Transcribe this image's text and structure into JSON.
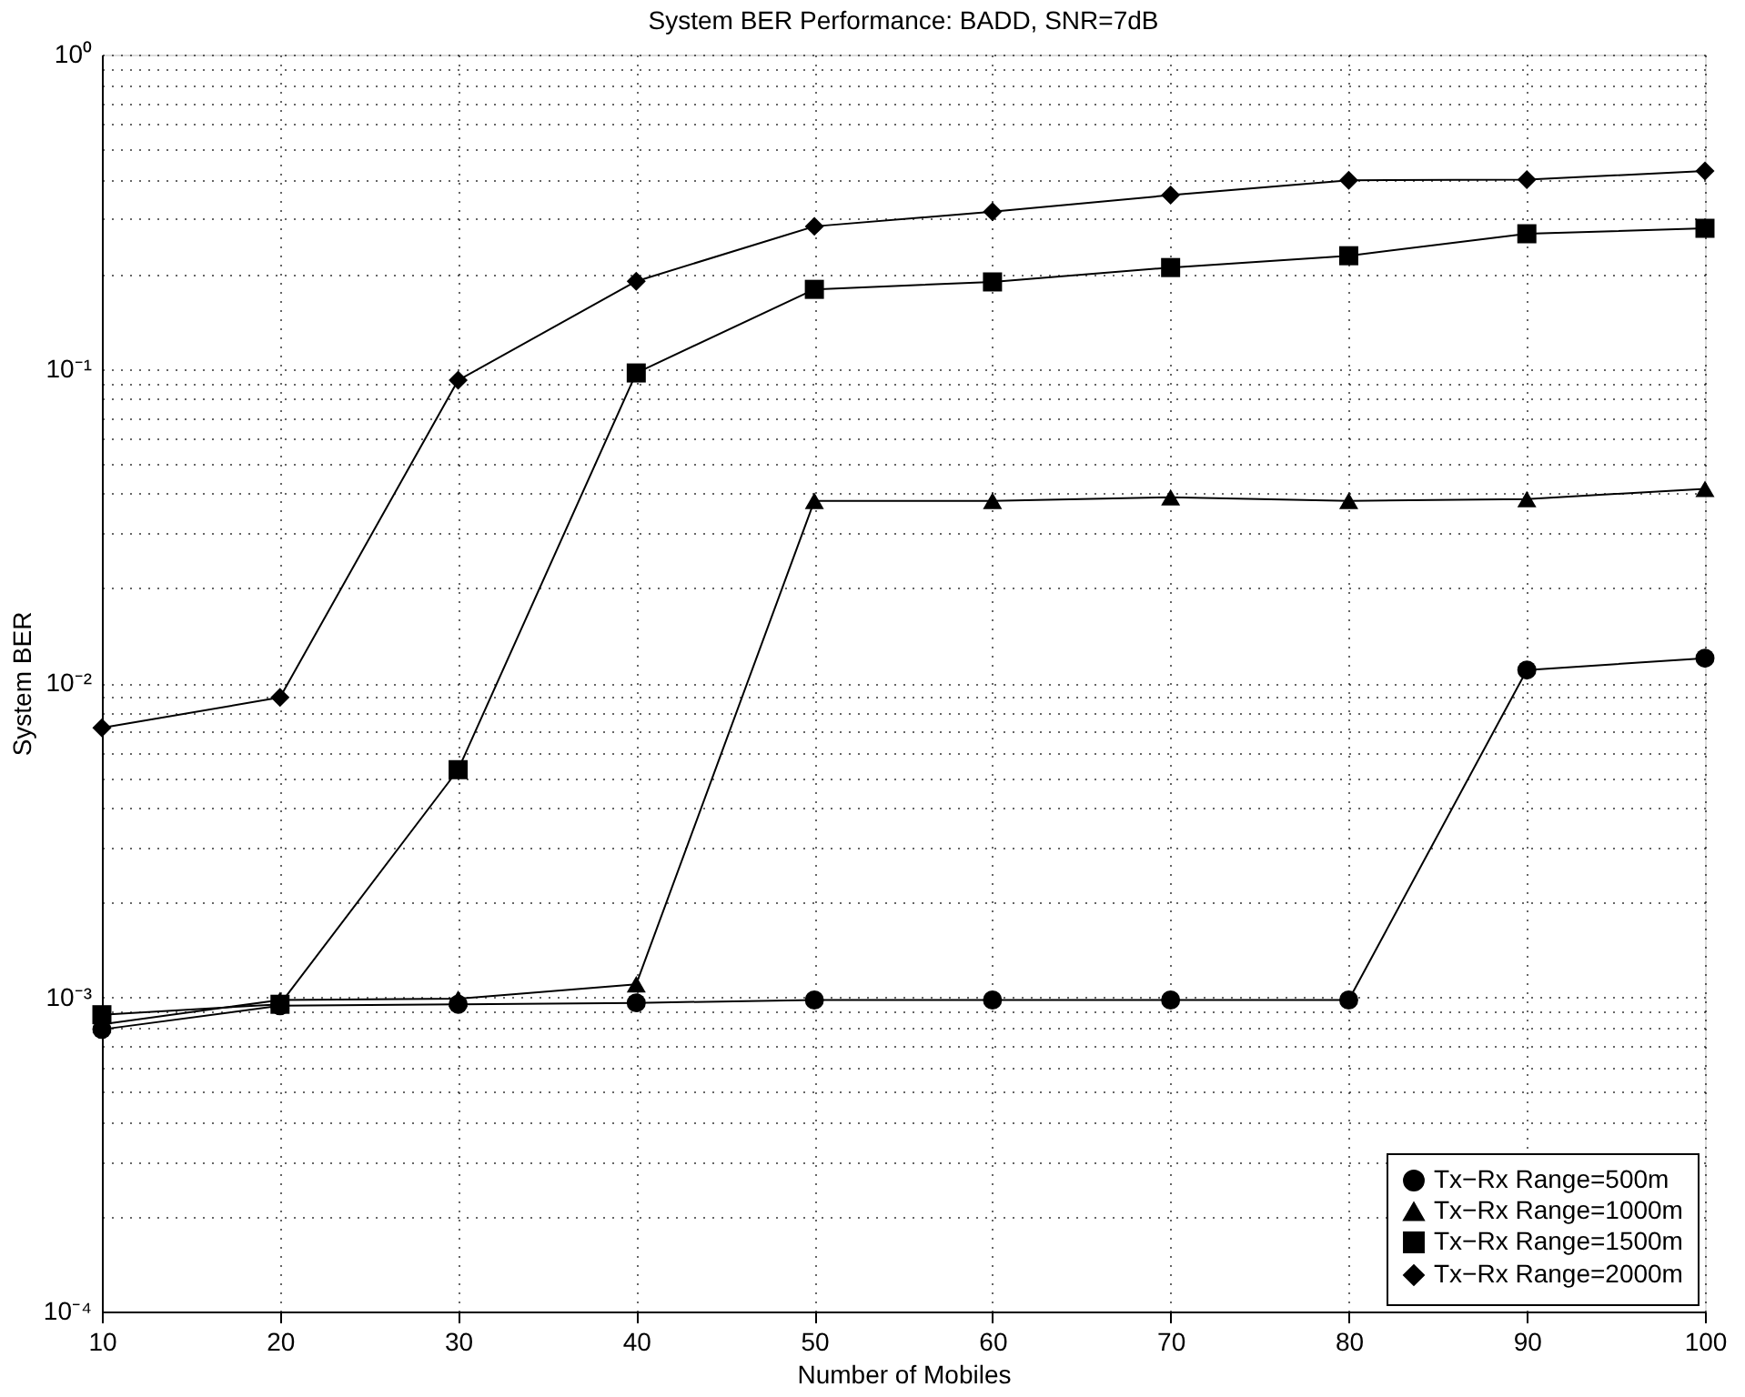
{
  "chart_data": {
    "type": "line",
    "title": "System BER Performance: BADD, SNR=7dB",
    "xlabel": "Number of Mobiles",
    "ylabel": "System BER",
    "x": [
      10,
      20,
      30,
      40,
      50,
      60,
      70,
      80,
      90,
      100
    ],
    "series": [
      {
        "name": "Tx−Rx Range=500m",
        "color": "#000000",
        "marker": "circle",
        "values": [
          0.00079,
          0.00094,
          0.00095,
          0.00096,
          0.00098,
          0.00098,
          0.00098,
          0.00098,
          0.011,
          0.012
        ]
      },
      {
        "name": "Tx−Rx Range=1000m",
        "color": "#000000",
        "marker": "triangle",
        "values": [
          0.00082,
          0.00098,
          0.00099,
          0.0011,
          0.038,
          0.038,
          0.039,
          0.038,
          0.0385,
          0.0415
        ]
      },
      {
        "name": "Tx−Rx Range=1500m",
        "color": "#000000",
        "marker": "square",
        "values": [
          0.00088,
          0.00095,
          0.0053,
          0.097,
          0.179,
          0.189,
          0.21,
          0.229,
          0.269,
          0.28
        ]
      },
      {
        "name": "Tx−Rx Range=2000m",
        "color": "#000000",
        "marker": "diamond",
        "values": [
          0.0072,
          0.009,
          0.092,
          0.19,
          0.284,
          0.316,
          0.357,
          0.398,
          0.4,
          0.426
        ]
      }
    ],
    "log": true,
    "xlim": [
      10,
      100
    ],
    "ylim": [
      0.0001,
      1
    ],
    "xticks": [
      10,
      20,
      30,
      40,
      50,
      60,
      70,
      80,
      90,
      100
    ],
    "yticks": [
      {
        "value": 0.0001,
        "label": "10⁻⁴"
      },
      {
        "value": 0.0002,
        "label": null
      },
      {
        "value": 0.0003,
        "label": null
      },
      {
        "value": 0.0004,
        "label": null
      },
      {
        "value": 0.0005,
        "label": null
      },
      {
        "value": 0.0006,
        "label": null
      },
      {
        "value": 0.0007,
        "label": null
      },
      {
        "value": 0.0008,
        "label": null
      },
      {
        "value": 0.0009,
        "label": null
      },
      {
        "value": 0.001,
        "label": "10⁻³"
      },
      {
        "value": 0.002,
        "label": null
      },
      {
        "value": 0.003,
        "label": null
      },
      {
        "value": 0.004,
        "label": null
      },
      {
        "value": 0.005,
        "label": null
      },
      {
        "value": 0.006,
        "label": null
      },
      {
        "value": 0.007,
        "label": null
      },
      {
        "value": 0.008,
        "label": null
      },
      {
        "value": 0.009,
        "label": null
      },
      {
        "value": 0.01,
        "label": "10⁻²"
      },
      {
        "value": 0.02,
        "label": null
      },
      {
        "value": 0.03,
        "label": null
      },
      {
        "value": 0.04,
        "label": null
      },
      {
        "value": 0.05,
        "label": null
      },
      {
        "value": 0.06,
        "label": null
      },
      {
        "value": 0.07,
        "label": null
      },
      {
        "value": 0.08,
        "label": null
      },
      {
        "value": 0.09,
        "label": null
      },
      {
        "value": 0.1,
        "label": "10⁻¹"
      },
      {
        "value": 0.2,
        "label": null
      },
      {
        "value": 0.3,
        "label": null
      },
      {
        "value": 0.4,
        "label": null
      },
      {
        "value": 0.5,
        "label": null
      },
      {
        "value": 0.6,
        "label": null
      },
      {
        "value": 0.7,
        "label": null
      },
      {
        "value": 0.8,
        "label": null
      },
      {
        "value": 0.9,
        "label": null
      },
      {
        "value": 1,
        "label": "10⁰"
      }
    ],
    "grid": true,
    "legend": "bottom right",
    "line_style": "solid"
  }
}
